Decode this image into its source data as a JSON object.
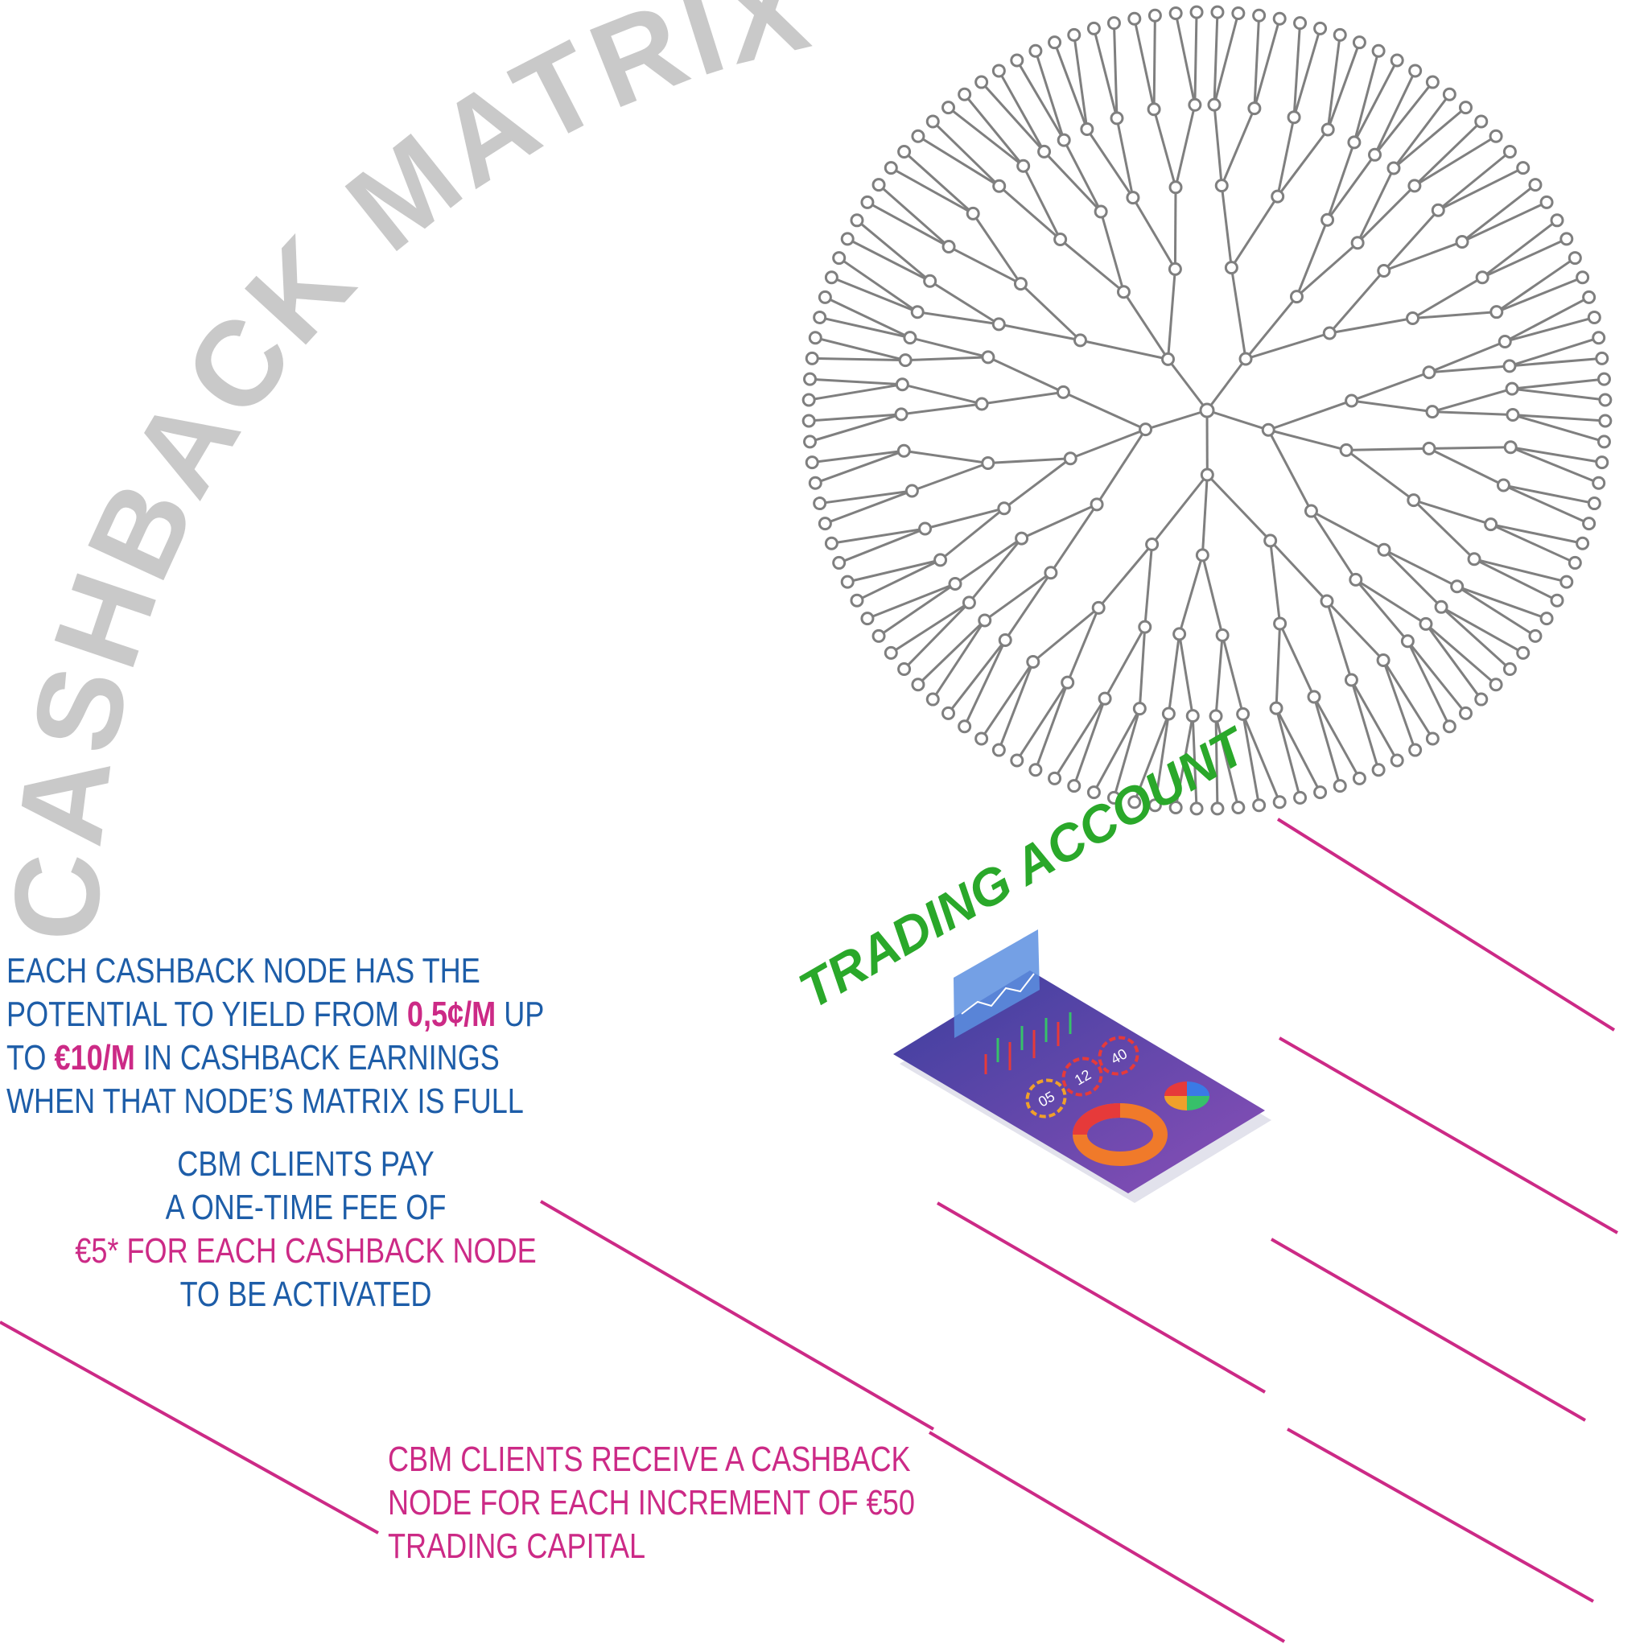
{
  "colors": {
    "tree": "#7f7f7f",
    "title": "#c9c9c9",
    "blue": "#1d5da8",
    "magenta": "#cc2a86",
    "green": "#2aa82a"
  },
  "title": "CASHBACK MATRIX",
  "trading_label": "TRADING ACCOUNT",
  "tablet": {
    "gauges": [
      "05",
      "12",
      "40"
    ]
  },
  "block1": {
    "line1": "EACH CASHBACK NODE HAS THE",
    "line2_pre": "POTENTIAL TO YIELD FROM ",
    "line2_hl": "0,5¢/M",
    "line2_post": " UP",
    "line3_pre": "TO  ",
    "line3_hl": "€10/M",
    "line3_post": " IN CASHBACK EARNINGS",
    "line4": "WHEN THAT NODE’S MATRIX IS FULL"
  },
  "block2": {
    "line1": "CBM CLIENTS PAY",
    "line2": "A ONE-TIME FEE OF",
    "line3": "€5* FOR EACH CASHBACK NODE",
    "line4": "TO BE ACTIVATED"
  },
  "block3": {
    "line1": "CBM CLIENTS RECEIVE A CASHBACK",
    "line2": "NODE FOR EACH INCREMENT OF €50",
    "line3": "TRADING CAPITAL"
  }
}
